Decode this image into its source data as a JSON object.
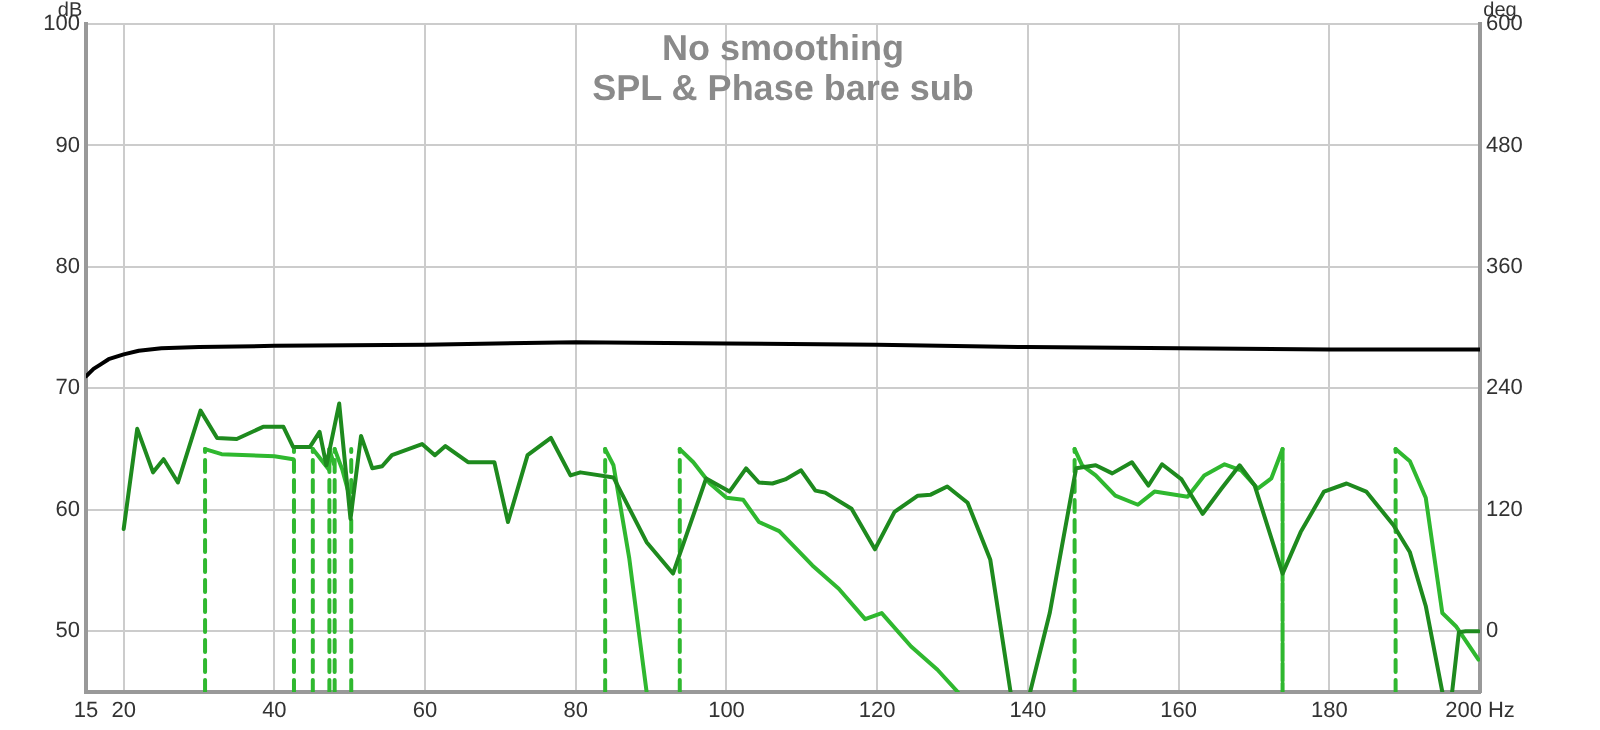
{
  "chart_data": {
    "type": "line",
    "title": "No smoothing",
    "subtitle": "SPL & Phase bare sub",
    "ylabel": "dB",
    "y2label": "deg",
    "xlim": [
      15,
      200
    ],
    "xticks": [
      15,
      20,
      40,
      60,
      80,
      100,
      120,
      140,
      160,
      180,
      {
        "value": 200,
        "label": "200 Hz"
      }
    ],
    "ylim": [
      45,
      100
    ],
    "yticks": [
      50,
      60,
      70,
      80,
      90,
      100
    ],
    "y2lim": [
      -60,
      600
    ],
    "y2ticks": [
      0,
      120,
      240,
      360,
      480,
      600
    ],
    "grid": true,
    "legend": false,
    "marker": "none",
    "line_style": "solid",
    "series": [
      {
        "color": "#000000",
        "x": [
          15,
          16,
          17,
          18,
          20,
          22,
          25,
          30,
          40,
          60,
          80,
          100,
          120,
          140,
          160,
          180,
          200
        ],
        "values": [
          71,
          71.6,
          72,
          72.4,
          72.8,
          73.1,
          73.3,
          73.4,
          73.5,
          73.6,
          73.8,
          73.7,
          73.6,
          73.4,
          73.3,
          73.2,
          73.2
        ]
      },
      {
        "color": "#1e8a1e",
        "axis": "y2",
        "x": [
          20,
          21.8,
          23.9,
          25.3,
          27.2,
          30.2,
          32.4,
          35,
          38.5,
          41.2,
          42.5,
          44.7,
          46,
          46.9,
          48.6,
          50.1,
          51.5,
          53,
          54.3,
          55.6,
          59.6,
          61.3,
          62.7,
          65.7,
          69.2,
          71,
          73.6,
          76.7,
          79.3,
          80.6,
          85,
          89.4,
          92.9,
          97.3,
          100.4,
          102.6,
          104.3,
          106.1,
          107.8,
          109.9,
          111.8,
          113.1,
          116.6,
          119.7,
          122.3,
          125.4,
          127.1,
          129.3,
          132,
          135,
          137.7,
          139,
          140.3,
          142.9,
          146.4,
          149,
          151.2,
          153.8,
          156,
          157.8,
          160.4,
          163.2,
          165.7,
          168.1,
          170.1,
          173.8,
          176.2,
          179.3,
          182.3,
          184.9,
          188.5,
          190.7,
          192.8,
          195,
          195.6,
          196.3,
          197.2,
          198.1,
          199.8
        ],
        "values": [
          101,
          200,
          157,
          170,
          147,
          218,
          191,
          190,
          202,
          202,
          182,
          182,
          197,
          164,
          225,
          111,
          193,
          161,
          163,
          174,
          185,
          174,
          183,
          167,
          167,
          108,
          174,
          191,
          154,
          157,
          152,
          88,
          57,
          151,
          138,
          161,
          147,
          146,
          150,
          159,
          139,
          137,
          121,
          81,
          118,
          134,
          135,
          143,
          127,
          71,
          -60,
          null,
          -60,
          18,
          161,
          164,
          156,
          167,
          144,
          165,
          150,
          116,
          141,
          164,
          144,
          57,
          98,
          138,
          146,
          138,
          105,
          78,
          25,
          -60,
          null,
          -60,
          -1,
          0,
          0
        ]
      },
      {
        "color": "#2fb82f",
        "axis": "y2",
        "x": [
          30.8,
          30.8,
          33,
          40,
          42.5,
          42.55,
          42.6,
          42.6,
          45.08,
          45.1,
          45.1,
          47.2,
          47.25,
          47.3,
          47.3,
          47.9,
          47.95,
          48,
          48,
          49,
          50.1,
          50.15,
          50.2,
          50.2,
          67,
          83.9,
          83.9,
          85,
          87.1,
          89.4,
          91,
          93.8,
          93.8,
          95.6,
          97.8,
          100,
          102.2,
          104.3,
          107,
          111.4,
          114.9,
          118.4,
          120.6,
          124.5,
          128,
          130.7,
          140,
          146.2,
          146.2,
          147.2,
          149,
          151.6,
          154.6,
          156.8,
          161.2,
          163.4,
          166.1,
          168.3,
          170.5,
          172.3,
          173.8,
          173.8,
          180,
          188.8,
          188.8,
          190.7,
          192.8,
          195,
          196.8,
          199.8
        ],
        "values": [
          -60,
          180,
          175,
          173,
          170,
          null,
          -60,
          180,
          null,
          -60,
          180,
          160,
          null,
          -60,
          180,
          165,
          null,
          -60,
          180,
          160,
          130,
          null,
          -60,
          180,
          null,
          -60,
          180,
          164,
          72,
          -60,
          null,
          -60,
          180,
          167,
          146,
          132,
          130,
          108,
          99,
          65,
          42,
          12,
          18,
          -15,
          -38,
          -60,
          null,
          -60,
          180,
          164,
          154,
          134,
          125,
          138,
          133,
          154,
          165,
          159,
          141,
          151,
          180,
          -60,
          null,
          -60,
          180,
          168,
          132,
          18,
          5,
          -28
        ]
      }
    ]
  }
}
